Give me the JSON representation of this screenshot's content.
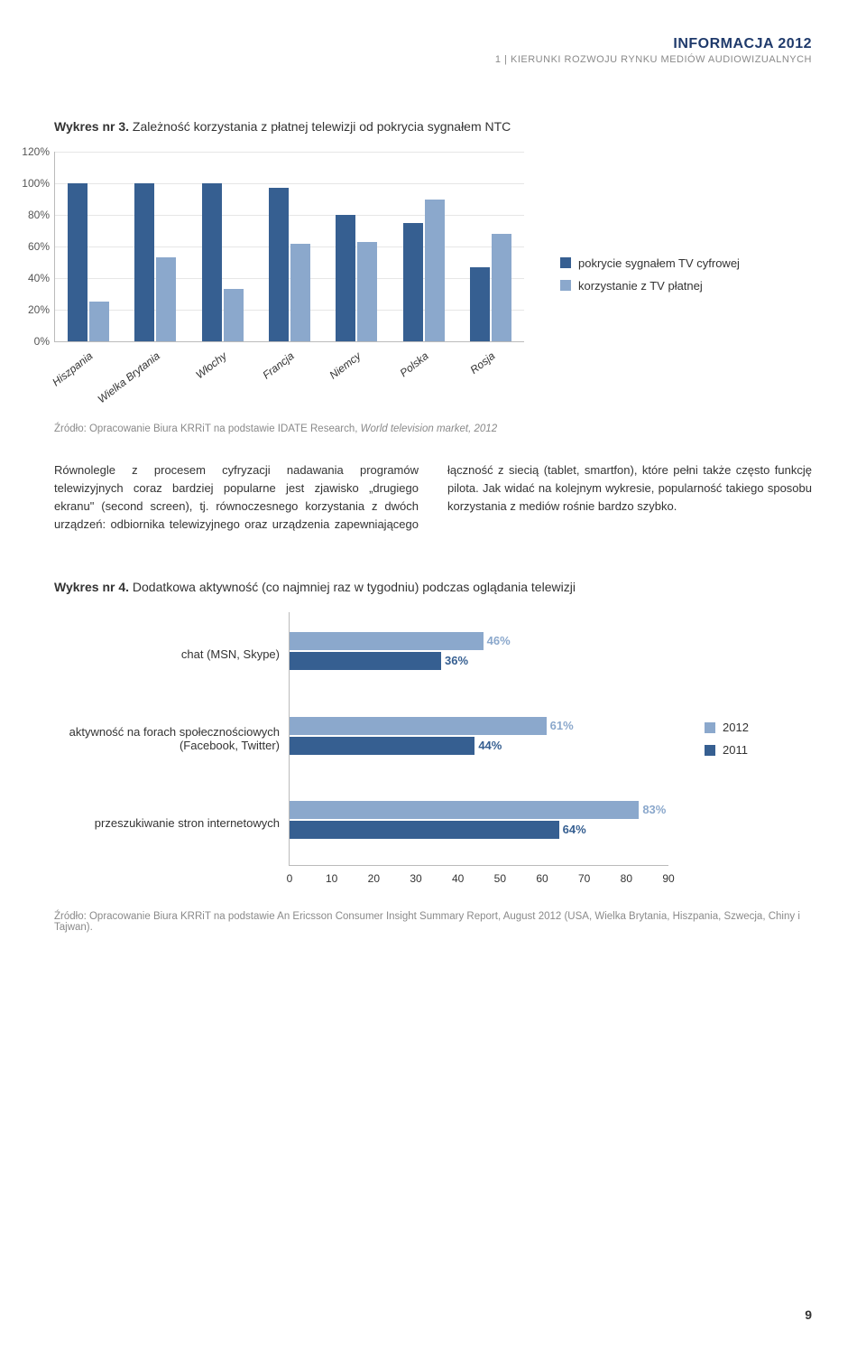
{
  "header": {
    "title": "INFORMACJA 2012",
    "subtitle": "1 | KIERUNKI ROZWOJU RYNKU MEDIÓW AUDIOWIZUALNYCH"
  },
  "colors": {
    "series_dark": "#365f91",
    "series_light": "#8ba8cc",
    "grid": "#e6e6e6",
    "axis": "#bbbbbb",
    "text_muted": "#8a8a8a"
  },
  "chart1": {
    "title_prefix": "Wykres nr 3.",
    "title_rest": " Zależność korzystania z płatnej telewizji od pokrycia sygnałem NTC",
    "type": "grouped-bar",
    "ymax": 120,
    "ystep": 20,
    "yticks": [
      "0%",
      "20%",
      "40%",
      "60%",
      "80%",
      "100%",
      "120%"
    ],
    "categories": [
      "Hiszpania",
      "Wielka Brytania",
      "Włochy",
      "Francja",
      "Niemcy",
      "Polska",
      "Rosja"
    ],
    "legend": [
      {
        "label": "pokrycie sygnałem TV cyfrowej",
        "color": "#365f91"
      },
      {
        "label": "korzystanie z TV płatnej",
        "color": "#8ba8cc"
      }
    ],
    "data": [
      {
        "dark": 100,
        "light": 25
      },
      {
        "dark": 100,
        "light": 53
      },
      {
        "dark": 100,
        "light": 33
      },
      {
        "dark": 97,
        "light": 62
      },
      {
        "dark": 80,
        "light": 63
      },
      {
        "dark": 75,
        "light": 90
      },
      {
        "dark": 47,
        "light": 68
      }
    ]
  },
  "source1": {
    "prefix": "Źródło: Opracowanie Biura KRRiT na podstawie IDATE Research, ",
    "italic": "World television market, 2012"
  },
  "body": {
    "text": "Równolegle z procesem cyfryzacji nadawania programów telewizyjnych coraz bardziej popularne jest zjawisko „drugiego ekranu\" (second screen), tj. równoczesnego korzystania z dwóch urządzeń: odbiornika telewizyjnego oraz urządzenia zapewniającego łączność z siecią (tablet, smartfon), które pełni także często funkcję pilota. Jak widać na kolejnym wykresie, popularność takiego sposobu korzystania z mediów rośnie bardzo szybko."
  },
  "chart2": {
    "title_prefix": "Wykres nr 4.",
    "title_rest": " Dodatkowa aktywność (co najmniej raz w tygodniu) podczas oglądania telewizji",
    "type": "grouped-hbar",
    "xmax": 90,
    "xticks": [
      0,
      10,
      20,
      30,
      40,
      50,
      60,
      70,
      80,
      90
    ],
    "legend": [
      {
        "label": "2012",
        "color": "#8ba8cc"
      },
      {
        "label": "2011",
        "color": "#365f91"
      }
    ],
    "rows": [
      {
        "label": "chat (MSN, Skype)",
        "v2012": 46,
        "v2011": 36
      },
      {
        "label": "aktywność na forach społecznościowych (Facebook, Twitter)",
        "v2012": 61,
        "v2011": 44
      },
      {
        "label": "przeszukiwanie stron internetowych",
        "v2012": 83,
        "v2011": 64
      }
    ]
  },
  "source2": {
    "text": "Źródło: Opracowanie Biura KRRiT na podstawie An Ericsson Consumer Insight Summary Report, August 2012 (USA, Wielka Brytania, Hiszpania, Szwecja, Chiny i Tajwan)."
  },
  "page_number": "9"
}
